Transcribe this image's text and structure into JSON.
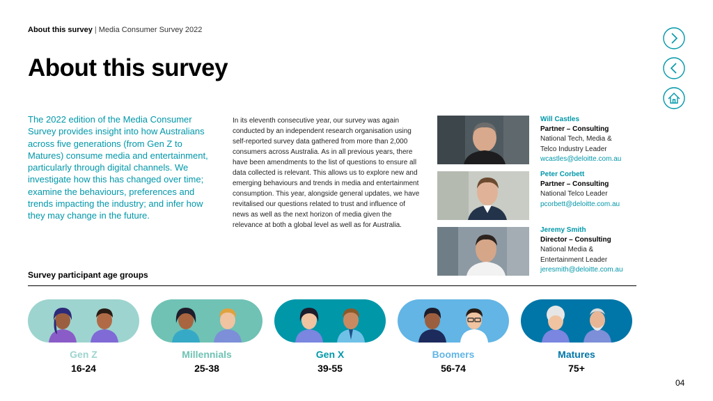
{
  "breadcrumb": {
    "bold": "About this survey",
    "separator": "|",
    "rest": "Media Consumer Survey 2022"
  },
  "title": "About this survey",
  "nav": {
    "next_icon": "chevron-right-icon",
    "prev_icon": "chevron-left-icon",
    "home_icon": "home-icon",
    "color": "#0097A9"
  },
  "intro": "The 2022 edition of the Media Consumer Survey provides insight into how Australians across five generations (from Gen Z to Matures) consume media and entertainment, particularly through digital channels. We investigate how this has changed over time; examine the behaviours, preferences and trends impacting the industry; and infer how they may change in the future.",
  "body": "In its eleventh consecutive year, our survey was again conducted by an independent research organisation using self-reported survey data gathered from more than 2,000 consumers across Australia. As in all previous years, there have been amendments to the list of questions to ensure all data collected is relevant. This allows us to explore new and emerging behaviours and trends in media and entertainment consumption. This year, alongside general updates, we have revitalised our questions related to trust and influence of news as well as the next horizon of media given the relevance at both a global level as well as for Australia.",
  "people": [
    {
      "name": "Will Castles",
      "role": "Partner – Consulting",
      "desc1": "National Tech, Media &",
      "desc2": "Telco Industry Leader",
      "email": "wcastles@deloitte.com.au"
    },
    {
      "name": "Peter Corbett",
      "role": "Partner – Consulting",
      "desc1": "National Telco Leader",
      "desc2": "",
      "email": "pcorbett@deloitte.com.au"
    },
    {
      "name": "Jeremy Smith",
      "role": "Director – Consulting",
      "desc1": "National Media &",
      "desc2": "Entertainment Leader",
      "email": "jeresmith@deloitte.com.au"
    }
  ],
  "age_section_title": "Survey participant age groups",
  "age_groups": [
    {
      "name": "Gen Z",
      "range": "16-24",
      "color": "#9DD4CF"
    },
    {
      "name": "Millennials",
      "range": "25-38",
      "color": "#6FC2B4"
    },
    {
      "name": "Gen X",
      "range": "39-55",
      "color": "#0097A9"
    },
    {
      "name": "Boomers",
      "range": "56-74",
      "color": "#62B5E5"
    },
    {
      "name": "Matures",
      "range": "75+",
      "color": "#0076A8"
    }
  ],
  "page_number": "04"
}
